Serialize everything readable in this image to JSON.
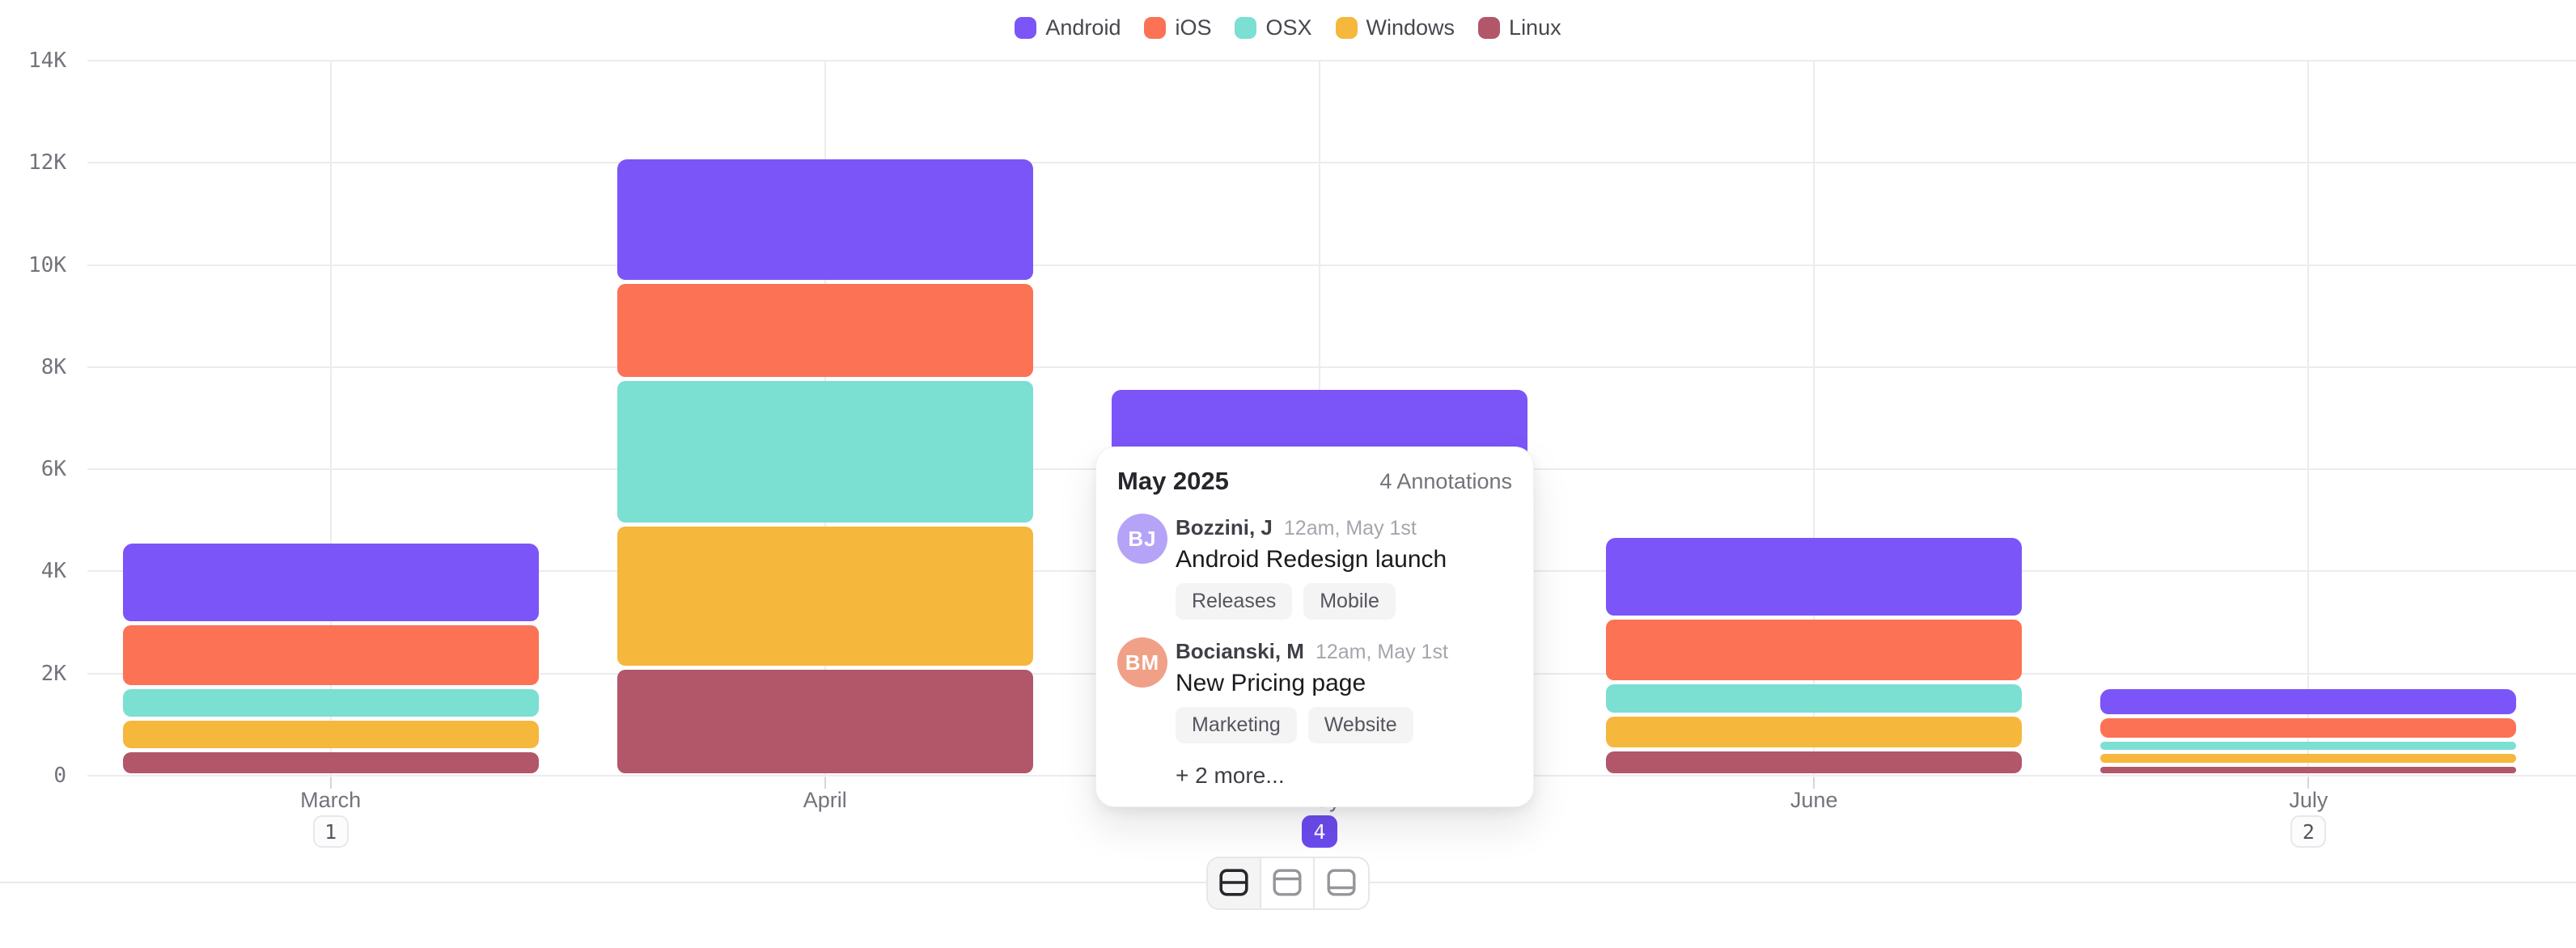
{
  "chart_data": {
    "type": "bar",
    "stacked": true,
    "stack_order": "first-series-on-top",
    "categories": [
      "March",
      "April",
      "May",
      "June",
      "July"
    ],
    "series": [
      {
        "name": "Android",
        "color": "#7B55F8",
        "values": [
          1600,
          2430,
          2100,
          1600,
          560
        ]
      },
      {
        "name": "iOS",
        "color": "#FB7255",
        "values": [
          1250,
          1900,
          1700,
          1270,
          470
        ]
      },
      {
        "name": "OSX",
        "color": "#7BDFD2",
        "values": [
          620,
          2850,
          1500,
          640,
          230
        ]
      },
      {
        "name": "Windows",
        "color": "#F6B73D",
        "values": [
          620,
          2800,
          1400,
          670,
          260
        ]
      },
      {
        "name": "Linux",
        "color": "#B2566A",
        "values": [
          500,
          2120,
          900,
          520,
          210
        ]
      }
    ],
    "yticks": [
      {
        "label": "0",
        "value": 0
      },
      {
        "label": "2K",
        "value": 2000
      },
      {
        "label": "4K",
        "value": 4000
      },
      {
        "label": "6K",
        "value": 6000
      },
      {
        "label": "8K",
        "value": 8000
      },
      {
        "label": "10K",
        "value": 10000
      },
      {
        "label": "12K",
        "value": 12000
      },
      {
        "label": "14K",
        "value": 14000
      }
    ],
    "ylim": [
      0,
      14000
    ],
    "grid": true,
    "legend_position": "top-center",
    "annotation_badges": [
      {
        "category": "March",
        "count": "1",
        "selected": false
      },
      {
        "category": "May",
        "count": "4",
        "selected": true
      },
      {
        "category": "July",
        "count": "2",
        "selected": false
      }
    ]
  },
  "tooltip": {
    "title": "May 2025",
    "count_label": "4 Annotations",
    "annotations": [
      {
        "initials": "BJ",
        "avatar_color": "#B5A3F8",
        "author": "Bozzini, J",
        "time": "12am, May 1st",
        "text": "Android Redesign launch",
        "tags": [
          "Releases",
          "Mobile"
        ]
      },
      {
        "initials": "BM",
        "avatar_color": "#F0A087",
        "author": "Bocianski, M",
        "time": "12am, May 1st",
        "text": "New Pricing page",
        "tags": [
          "Marketing",
          "Website"
        ]
      }
    ],
    "more_label": "+ 2 more..."
  },
  "toolbar": {
    "layout_options": [
      {
        "name": "split-rows",
        "active": true
      },
      {
        "name": "panel-top",
        "active": false
      },
      {
        "name": "panel-bottom",
        "active": false
      }
    ]
  },
  "colors": {
    "badge_selected": "#6C4BEE",
    "grid": "#ECECEF",
    "axis_text": "#73737B"
  }
}
